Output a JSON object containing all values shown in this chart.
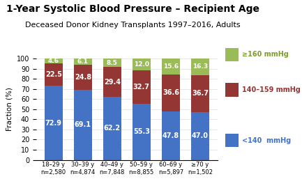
{
  "title": "1-Year Systolic Blood Pressure – Recipient Age",
  "subtitle": "Deceased Donor Kidney Transplants 1997–2016, Adults",
  "categories": [
    "18–29 y\nn=2,580",
    "30–39 y\nn=4,874",
    "40–49 y\nn=7,848",
    "50–59 y\nn=8,855",
    "60–69 y\nn=5,897",
    "≥70 y\nn=1,502"
  ],
  "below140": [
    72.9,
    69.1,
    62.2,
    55.3,
    47.8,
    47.0
  ],
  "range140_159": [
    22.5,
    24.8,
    29.4,
    32.7,
    36.6,
    36.7
  ],
  "above160": [
    4.6,
    6.1,
    8.5,
    12.0,
    15.6,
    16.3
  ],
  "color_below140": "#4472C4",
  "color_140_159": "#943634",
  "color_above160": "#9BBB59",
  "ylabel": "Fraction (%)",
  "ylim": [
    0,
    100
  ],
  "yticks": [
    0,
    10,
    20,
    30,
    40,
    50,
    60,
    70,
    80,
    90,
    100
  ],
  "legend_labels": [
    "≥160 mmHg",
    "140–159 mmHg",
    "<140  mmHg"
  ],
  "legend_colors": [
    "#9BBB59",
    "#943634",
    "#4472C4"
  ],
  "text_color_above160": "#7B9C2E",
  "text_color_140_159": "#943634",
  "text_color_below140": "#FFFFFF",
  "title_fontsize": 10,
  "subtitle_fontsize": 8
}
